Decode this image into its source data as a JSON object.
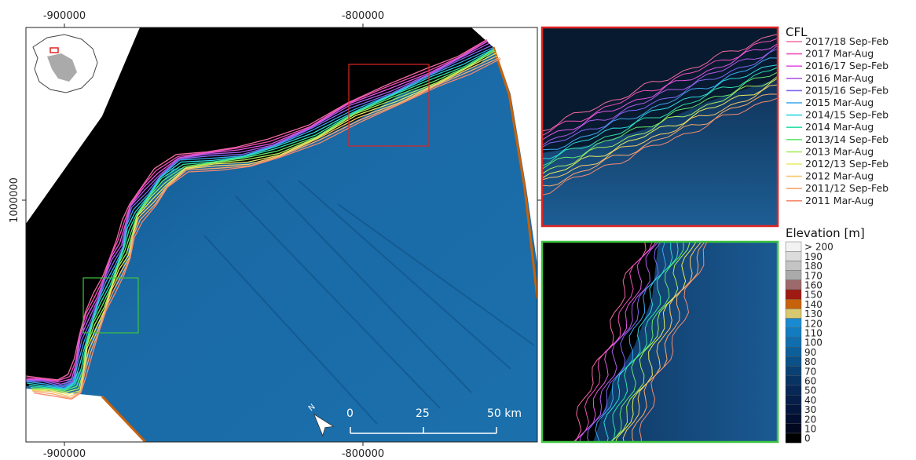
{
  "axes": {
    "x_ticks_top": [
      "-900000",
      "-800000"
    ],
    "x_ticks_bottom": [
      "-900000",
      "-800000"
    ],
    "y_ticks": [
      "1000000"
    ]
  },
  "legend_cfl": {
    "title": "CFL",
    "entries": [
      {
        "label": "2017/18 Sep-Feb",
        "color": "#f06aa0"
      },
      {
        "label": "2017 Mar-Aug",
        "color": "#f24fb8"
      },
      {
        "label": "2016/17 Sep-Feb",
        "color": "#e455e6"
      },
      {
        "label": "2016 Mar-Aug",
        "color": "#b05ae8"
      },
      {
        "label": "2015/16 Sep-Feb",
        "color": "#7c68f2"
      },
      {
        "label": "2015 Mar-Aug",
        "color": "#3aa6ee"
      },
      {
        "label": "2014/15 Sep-Feb",
        "color": "#2cd8e0"
      },
      {
        "label": "2014 Mar-Aug",
        "color": "#2fe0a8"
      },
      {
        "label": "2013/14 Sep-Feb",
        "color": "#62e86c"
      },
      {
        "label": "2013 Mar-Aug",
        "color": "#a6ec5c"
      },
      {
        "label": "2012/13 Sep-Feb",
        "color": "#e8ec5e"
      },
      {
        "label": "2012 Mar-Aug",
        "color": "#f6c86a"
      },
      {
        "label": "2011/12 Sep-Feb",
        "color": "#f7a870"
      },
      {
        "label": "2011 Mar-Aug",
        "color": "#f58a6e"
      }
    ]
  },
  "legend_elevation": {
    "title": "Elevation [m]",
    "entries": [
      {
        "label": "> 200",
        "color": "#f2f2f2"
      },
      {
        "label": "190",
        "color": "#dcdcdc"
      },
      {
        "label": "180",
        "color": "#c4c4c4"
      },
      {
        "label": "170",
        "color": "#aaaaaa"
      },
      {
        "label": "160",
        "color": "#9c6a6a"
      },
      {
        "label": "150",
        "color": "#9e1a12"
      },
      {
        "label": "140",
        "color": "#c8620a"
      },
      {
        "label": "130",
        "color": "#d8c870"
      },
      {
        "label": "120",
        "color": "#1a8ad0"
      },
      {
        "label": "110",
        "color": "#137cc0"
      },
      {
        "label": "100",
        "color": "#0f6eae"
      },
      {
        "label": "90",
        "color": "#0d5f9a"
      },
      {
        "label": "80",
        "color": "#0b5086"
      },
      {
        "label": "70",
        "color": "#0a4174"
      },
      {
        "label": "60",
        "color": "#083464"
      },
      {
        "label": "50",
        "color": "#072856"
      },
      {
        "label": "40",
        "color": "#051e4a"
      },
      {
        "label": "30",
        "color": "#04163e"
      },
      {
        "label": "20",
        "color": "#030f30"
      },
      {
        "label": "10",
        "color": "#020820"
      },
      {
        "label": "0",
        "color": "#000000"
      }
    ]
  },
  "scale_bar": {
    "labels": [
      "0",
      "25",
      "50 km"
    ],
    "north_label": "N"
  },
  "inset_colors": {
    "red": "#e02424",
    "green": "#3ec43e"
  }
}
